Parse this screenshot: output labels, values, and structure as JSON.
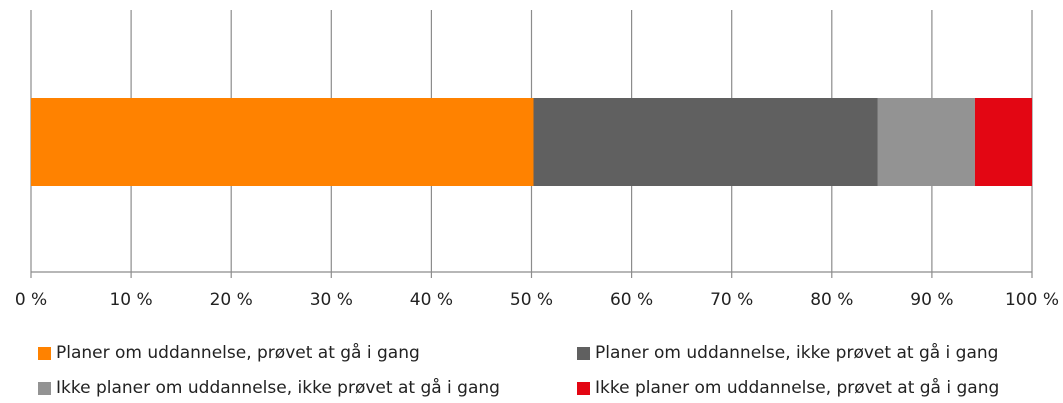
{
  "chart_data": {
    "type": "bar",
    "orientation": "horizontal",
    "stacked": true,
    "percent_stacked": true,
    "xlim": [
      0,
      100
    ],
    "x_ticks": [
      0,
      10,
      20,
      30,
      40,
      50,
      60,
      70,
      80,
      90,
      100
    ],
    "tick_labels": [
      "0 %",
      "10 %",
      "20 %",
      "30 %",
      "40 %",
      "50 %",
      "60 %",
      "70 %",
      "80 %",
      "90 %",
      "100 %"
    ],
    "grid": true,
    "legend_position": "bottom",
    "categories": [
      ""
    ],
    "series": [
      {
        "name": "Planer om uddannelse, prøvet at gå i gang",
        "values": [
          50.2
        ],
        "color": "#FF8200"
      },
      {
        "name": "Planer om uddannelse, ikke prøvet at gå i gang",
        "values": [
          34.4
        ],
        "color": "#606060"
      },
      {
        "name": "Ikke planer om uddannelse, ikke prøvet at gå i gang",
        "values": [
          9.7
        ],
        "color": "#939393"
      },
      {
        "name": "Ikke planer om uddannelse, prøvet at gå i gang",
        "values": [
          5.7
        ],
        "color": "#E30613"
      }
    ]
  }
}
